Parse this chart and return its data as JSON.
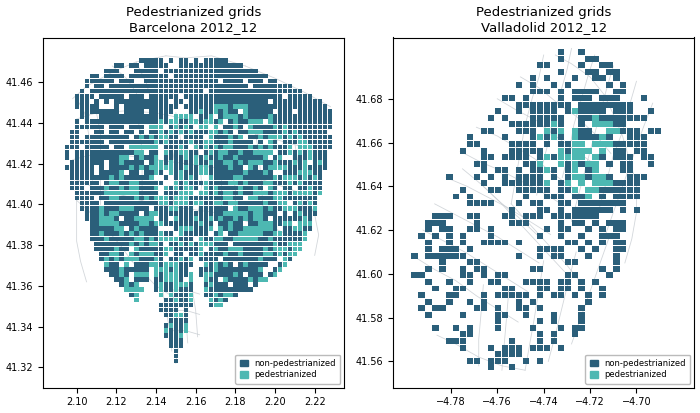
{
  "title_barcelona": "Pedestrianized grids\nBarcelona 2012_12",
  "title_valladolid": "Pedestrianized grids\nValladolid 2012_12",
  "barcelona": {
    "xlim": [
      2.083,
      2.235
    ],
    "ylim": [
      41.31,
      41.482
    ],
    "xticks": [
      2.1,
      2.12,
      2.14,
      2.16,
      2.18,
      2.2,
      2.22
    ],
    "yticks": [
      41.32,
      41.34,
      41.36,
      41.38,
      41.4,
      41.42,
      41.44,
      41.46
    ]
  },
  "valladolid": {
    "xlim": [
      -4.805,
      -4.675
    ],
    "ylim": [
      41.548,
      41.708
    ],
    "xticks": [
      -4.78,
      -4.76,
      -4.74,
      -4.72,
      -4.7
    ],
    "yticks": [
      41.56,
      41.58,
      41.6,
      41.62,
      41.64,
      41.66,
      41.68
    ]
  },
  "color_non_ped": "#2b5f7a",
  "color_ped": "#4db8b2",
  "color_roads": "#c8cdd2",
  "background": "#ffffff",
  "legend_non_ped": "non-pedestrianized",
  "legend_ped": "pedestrianized",
  "title_fontsize": 9.5,
  "tick_fontsize": 7,
  "grid_size_barcelona": 0.0025,
  "grid_size_valladolid": 0.003
}
